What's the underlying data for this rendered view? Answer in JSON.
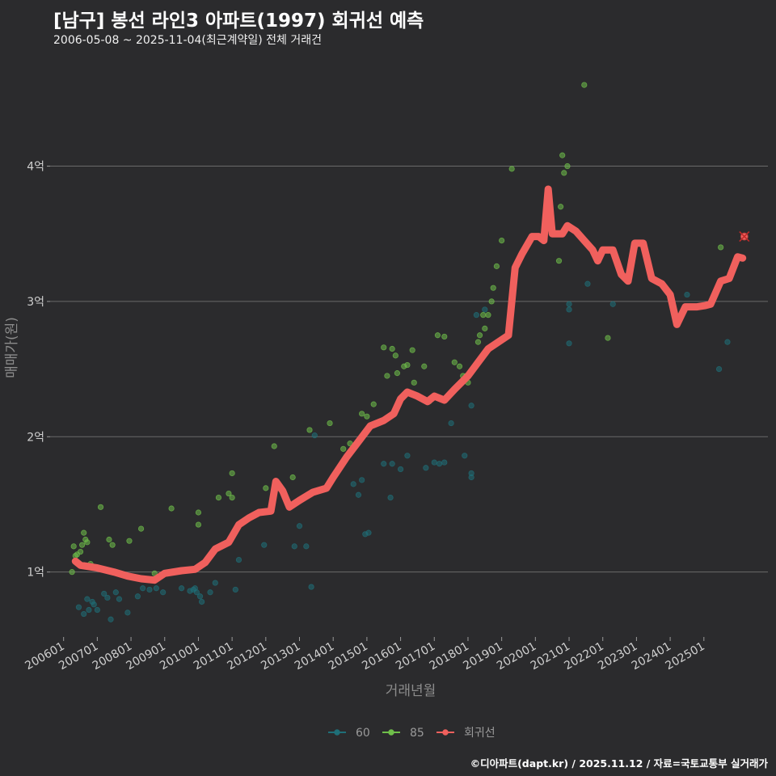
{
  "chart_data": {
    "type": "scatter",
    "title": "[남구] 봉선 라인3 아파트(1997) 회귀선 예측",
    "subtitle": "2006-05-08 ~ 2025-11-04(최근계약일) 전체 거래건",
    "xlabel": "거래년월",
    "ylabel": "매매가(원)",
    "caption": "©디아파트(dapt.kr) / 2025.11.12 / 자료=국토교통부 실거래가",
    "x_tick_labels": [
      "200601",
      "200701",
      "200801",
      "200901",
      "201001",
      "201101",
      "201201",
      "201301",
      "201401",
      "201501",
      "201601",
      "201701",
      "201801",
      "201901",
      "202001",
      "202101",
      "202201",
      "202301",
      "202401",
      "202501"
    ],
    "x_tick_values": [
      2006,
      2007,
      2008,
      2009,
      2010,
      2011,
      2012,
      2013,
      2014,
      2015,
      2016,
      2017,
      2018,
      2019,
      2020,
      2021,
      2022,
      2023,
      2024,
      2025
    ],
    "xlim": [
      2005.6,
      2026.9
    ],
    "y_tick_labels": [
      "1억",
      "2억",
      "3억",
      "4억"
    ],
    "y_tick_values": [
      1,
      2,
      3,
      4
    ],
    "ylim": [
      0.52,
      4.75
    ],
    "y_unit": "억",
    "legend": [
      {
        "name": "60",
        "color": "#1f6f78"
      },
      {
        "name": "85",
        "color": "#6fbf4a"
      },
      {
        "name": "회귀선",
        "color": "#f0605d"
      }
    ],
    "series": [
      {
        "name": "60",
        "color": "#1f6f78",
        "points": [
          [
            2006.45,
            0.74
          ],
          [
            2006.6,
            0.69
          ],
          [
            2006.75,
            0.72
          ],
          [
            2006.9,
            0.76
          ],
          [
            2007.0,
            0.72
          ],
          [
            2006.7,
            0.8
          ],
          [
            2006.85,
            0.78
          ],
          [
            2007.2,
            0.84
          ],
          [
            2007.3,
            0.81
          ],
          [
            2007.4,
            0.65
          ],
          [
            2007.55,
            0.85
          ],
          [
            2007.65,
            0.8
          ],
          [
            2007.9,
            0.7
          ],
          [
            2008.2,
            0.82
          ],
          [
            2008.35,
            0.88
          ],
          [
            2008.55,
            0.87
          ],
          [
            2008.75,
            0.88
          ],
          [
            2008.95,
            0.85
          ],
          [
            2009.5,
            0.88
          ],
          [
            2009.75,
            0.86
          ],
          [
            2009.85,
            0.87
          ],
          [
            2009.9,
            0.88
          ],
          [
            2009.95,
            0.85
          ],
          [
            2010.05,
            0.82
          ],
          [
            2010.1,
            0.78
          ],
          [
            2010.35,
            0.85
          ],
          [
            2010.5,
            0.92
          ],
          [
            2011.1,
            0.87
          ],
          [
            2011.2,
            1.09
          ],
          [
            2011.95,
            1.2
          ],
          [
            2012.85,
            1.19
          ],
          [
            2013.0,
            1.34
          ],
          [
            2013.2,
            1.19
          ],
          [
            2013.35,
            0.89
          ],
          [
            2013.45,
            2.01
          ],
          [
            2014.6,
            1.65
          ],
          [
            2014.75,
            1.57
          ],
          [
            2014.85,
            1.68
          ],
          [
            2014.95,
            1.28
          ],
          [
            2015.05,
            1.29
          ],
          [
            2015.5,
            1.8
          ],
          [
            2015.7,
            1.55
          ],
          [
            2015.75,
            1.8
          ],
          [
            2016.0,
            1.76
          ],
          [
            2016.2,
            1.86
          ],
          [
            2016.75,
            1.77
          ],
          [
            2017.0,
            1.81
          ],
          [
            2017.15,
            1.8
          ],
          [
            2017.3,
            1.81
          ],
          [
            2017.5,
            2.1
          ],
          [
            2017.9,
            1.86
          ],
          [
            2018.1,
            1.7
          ],
          [
            2018.1,
            1.73
          ],
          [
            2018.1,
            2.23
          ],
          [
            2018.25,
            2.9
          ],
          [
            2018.5,
            2.94
          ],
          [
            2021.0,
            2.98
          ],
          [
            2021.0,
            2.94
          ],
          [
            2021.0,
            2.69
          ],
          [
            2021.55,
            3.13
          ],
          [
            2022.3,
            2.98
          ],
          [
            2024.5,
            3.05
          ],
          [
            2025.45,
            2.5
          ],
          [
            2025.7,
            2.7
          ]
        ]
      },
      {
        "name": "85",
        "color": "#6fbf4a",
        "points": [
          [
            2006.25,
            1.0
          ],
          [
            2006.3,
            1.19
          ],
          [
            2006.35,
            1.12
          ],
          [
            2006.4,
            1.13
          ],
          [
            2006.5,
            1.15
          ],
          [
            2006.55,
            1.2
          ],
          [
            2006.6,
            1.29
          ],
          [
            2006.65,
            1.24
          ],
          [
            2006.7,
            1.22
          ],
          [
            2006.8,
            1.06
          ],
          [
            2007.1,
            1.48
          ],
          [
            2007.35,
            1.24
          ],
          [
            2007.45,
            1.2
          ],
          [
            2007.95,
            1.23
          ],
          [
            2008.3,
            1.32
          ],
          [
            2008.7,
            0.99
          ],
          [
            2009.2,
            1.47
          ],
          [
            2010.0,
            1.35
          ],
          [
            2010.0,
            1.44
          ],
          [
            2010.6,
            1.55
          ],
          [
            2010.9,
            1.58
          ],
          [
            2011.0,
            1.73
          ],
          [
            2011.0,
            1.55
          ],
          [
            2012.0,
            1.62
          ],
          [
            2012.25,
            1.93
          ],
          [
            2012.8,
            1.7
          ],
          [
            2013.3,
            2.05
          ],
          [
            2013.9,
            2.1
          ],
          [
            2014.3,
            1.91
          ],
          [
            2014.5,
            1.95
          ],
          [
            2014.85,
            2.17
          ],
          [
            2015.0,
            2.15
          ],
          [
            2015.2,
            2.24
          ],
          [
            2015.5,
            2.66
          ],
          [
            2015.6,
            2.45
          ],
          [
            2015.75,
            2.65
          ],
          [
            2015.85,
            2.6
          ],
          [
            2015.9,
            2.47
          ],
          [
            2016.1,
            2.52
          ],
          [
            2016.2,
            2.53
          ],
          [
            2016.35,
            2.64
          ],
          [
            2016.4,
            2.4
          ],
          [
            2016.5,
            2.3
          ],
          [
            2016.7,
            2.52
          ],
          [
            2016.85,
            2.26
          ],
          [
            2017.1,
            2.75
          ],
          [
            2017.3,
            2.74
          ],
          [
            2017.6,
            2.55
          ],
          [
            2017.75,
            2.52
          ],
          [
            2017.85,
            2.45
          ],
          [
            2017.95,
            2.45
          ],
          [
            2018.0,
            2.4
          ],
          [
            2018.3,
            2.7
          ],
          [
            2018.35,
            2.75
          ],
          [
            2018.45,
            2.9
          ],
          [
            2018.5,
            2.8
          ],
          [
            2018.6,
            2.9
          ],
          [
            2018.7,
            3.0
          ],
          [
            2018.75,
            3.1
          ],
          [
            2018.85,
            3.26
          ],
          [
            2019.0,
            3.45
          ],
          [
            2019.3,
            3.98
          ],
          [
            2020.7,
            3.3
          ],
          [
            2020.75,
            3.7
          ],
          [
            2020.8,
            4.08
          ],
          [
            2020.85,
            3.95
          ],
          [
            2020.95,
            4.0
          ],
          [
            2021.45,
            4.6
          ],
          [
            2022.15,
            2.73
          ],
          [
            2025.5,
            3.4
          ]
        ]
      }
    ],
    "regression": {
      "name": "회귀선",
      "color": "#f0605d",
      "points": [
        [
          2006.35,
          1.08
        ],
        [
          2006.5,
          1.05
        ],
        [
          2007.0,
          1.03
        ],
        [
          2007.5,
          1.0
        ],
        [
          2007.9,
          0.97
        ],
        [
          2008.3,
          0.95
        ],
        [
          2008.7,
          0.94
        ],
        [
          2009.0,
          0.99
        ],
        [
          2009.5,
          1.01
        ],
        [
          2009.9,
          1.02
        ],
        [
          2010.2,
          1.07
        ],
        [
          2010.5,
          1.17
        ],
        [
          2010.9,
          1.22
        ],
        [
          2011.2,
          1.35
        ],
        [
          2011.5,
          1.4
        ],
        [
          2011.8,
          1.44
        ],
        [
          2012.15,
          1.45
        ],
        [
          2012.3,
          1.67
        ],
        [
          2012.5,
          1.6
        ],
        [
          2012.7,
          1.48
        ],
        [
          2013.0,
          1.53
        ],
        [
          2013.4,
          1.59
        ],
        [
          2013.8,
          1.62
        ],
        [
          2014.0,
          1.7
        ],
        [
          2014.4,
          1.85
        ],
        [
          2014.8,
          1.98
        ],
        [
          2015.1,
          2.08
        ],
        [
          2015.5,
          2.12
        ],
        [
          2015.8,
          2.17
        ],
        [
          2016.0,
          2.28
        ],
        [
          2016.2,
          2.33
        ],
        [
          2016.5,
          2.3
        ],
        [
          2016.8,
          2.26
        ],
        [
          2017.0,
          2.3
        ],
        [
          2017.3,
          2.27
        ],
        [
          2017.6,
          2.35
        ],
        [
          2018.0,
          2.45
        ],
        [
          2018.3,
          2.55
        ],
        [
          2018.6,
          2.65
        ],
        [
          2018.9,
          2.7
        ],
        [
          2019.2,
          2.75
        ],
        [
          2019.4,
          3.25
        ],
        [
          2019.6,
          3.35
        ],
        [
          2019.9,
          3.48
        ],
        [
          2020.1,
          3.48
        ],
        [
          2020.25,
          3.45
        ],
        [
          2020.38,
          3.83
        ],
        [
          2020.5,
          3.5
        ],
        [
          2020.8,
          3.5
        ],
        [
          2020.95,
          3.56
        ],
        [
          2021.2,
          3.52
        ],
        [
          2021.45,
          3.45
        ],
        [
          2021.7,
          3.38
        ],
        [
          2021.85,
          3.3
        ],
        [
          2022.0,
          3.38
        ],
        [
          2022.3,
          3.38
        ],
        [
          2022.55,
          3.2
        ],
        [
          2022.75,
          3.15
        ],
        [
          2022.95,
          3.43
        ],
        [
          2023.2,
          3.43
        ],
        [
          2023.45,
          3.17
        ],
        [
          2023.75,
          3.13
        ],
        [
          2024.0,
          3.05
        ],
        [
          2024.2,
          2.83
        ],
        [
          2024.45,
          2.96
        ],
        [
          2024.8,
          2.96
        ],
        [
          2025.05,
          2.97
        ],
        [
          2025.2,
          2.98
        ],
        [
          2025.5,
          3.15
        ],
        [
          2025.75,
          3.17
        ],
        [
          2026.0,
          3.33
        ],
        [
          2026.15,
          3.32
        ]
      ]
    },
    "predicted_marker": {
      "x": 2026.2,
      "y": 3.48,
      "color": "#f0605d"
    }
  }
}
